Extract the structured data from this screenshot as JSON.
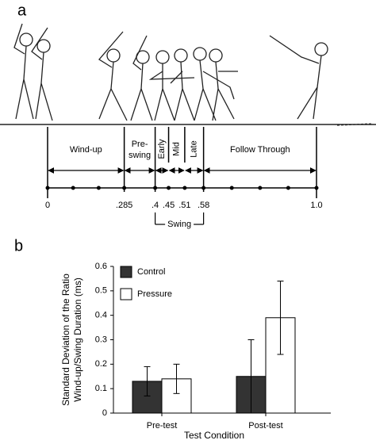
{
  "panel_a": {
    "label": "a",
    "phases": [
      {
        "lines": [
          "Wind-up"
        ]
      },
      {
        "lines": [
          "Pre-",
          "swing"
        ]
      },
      {
        "lines": [
          "Early"
        ],
        "rotated": true
      },
      {
        "lines": [
          "Mid"
        ],
        "rotated": true
      },
      {
        "lines": [
          "Late"
        ],
        "rotated": true
      },
      {
        "lines": [
          "Follow Through"
        ]
      }
    ],
    "timeline": [
      {
        "value": 0,
        "label": "0"
      },
      {
        "value": 0.285,
        "label": ".285"
      },
      {
        "value": 0.4,
        "label": ".4"
      },
      {
        "value": 0.45,
        "label": ".45"
      },
      {
        "value": 0.51,
        "label": ".51"
      },
      {
        "value": 0.58,
        "label": ".58"
      },
      {
        "value": 1.0,
        "label": "1.0"
      }
    ],
    "swing_label": "Swing"
  },
  "chart_data": {
    "type": "bar",
    "panel_label": "b",
    "x_label": "Test Condition",
    "y_label": [
      "Standard Deviation of the Ratio",
      "Wind-up/Swing Duration (ms)"
    ],
    "categories": [
      "Pre-test",
      "Post-test"
    ],
    "series": [
      {
        "name": "Control",
        "color": "#333333",
        "values": [
          0.13,
          0.15
        ],
        "errors": [
          0.06,
          0.15
        ]
      },
      {
        "name": "Pressure",
        "color": "#ffffff",
        "values": [
          0.14,
          0.39
        ],
        "errors": [
          0.06,
          0.15
        ]
      }
    ],
    "ylim": [
      0,
      0.6
    ],
    "yticks": [
      0,
      0.1,
      0.2,
      0.3,
      0.4,
      0.5,
      0.6
    ],
    "legend": "upper left"
  }
}
